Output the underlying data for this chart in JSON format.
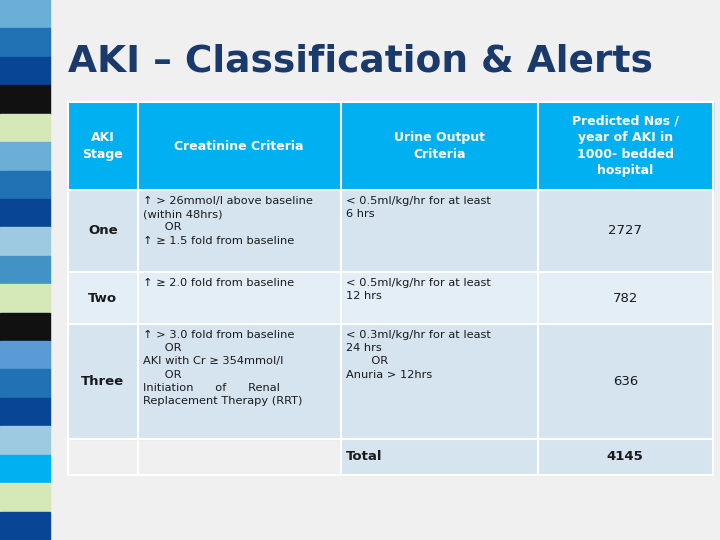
{
  "title": "AKI – Classification & Alerts",
  "title_color": "#1a3a6b",
  "header_bg": "#00b0f0",
  "row_bg_light": "#d6e4f0",
  "row_bg_lighter": "#e3eef7",
  "col_headers_0": "AKI\nStage",
  "col_headers_1": "Creatinine Criteria",
  "col_headers_2": "Urine Output\nCriteria",
  "col_headers_3": "Predicted Nøs /\nyear of AKI in\n1000- bedded\nhospital",
  "row1_stage": "One",
  "row1_creatinine_l1": "↑ > 26mmol/l above baseline",
  "row1_creatinine_l2": "(within 48hrs)",
  "row1_creatinine_l3": "OR",
  "row1_creatinine_l4": "↑ ≥ 1.5 fold from baseline",
  "row1_urine_l1": "< 0.5ml/kg/hr for at least",
  "row1_urine_l2": "6 hrs",
  "row1_predicted": "2727",
  "row2_stage": "Two",
  "row2_creatinine_l1": "↑ ≥ 2.0 fold from baseline",
  "row2_urine_l1": "< 0.5ml/kg/hr for at least",
  "row2_urine_l2": "12 hrs",
  "row2_predicted": "782",
  "row3_stage": "Three",
  "row3_creatinine_l1": "↑ > 3.0 fold from baseline",
  "row3_creatinine_l2": "OR",
  "row3_creatinine_l3": "AKI with Cr ≥ 354mmol/l",
  "row3_creatinine_l4": "OR",
  "row3_creatinine_l5": "Initiation      of      Renal",
  "row3_creatinine_l6": "Replacement Therapy (RRT)",
  "row3_urine_l1": "< 0.3ml/kg/hr for at least",
  "row3_urine_l2": "24 hrs",
  "row3_urine_l3": "OR",
  "row3_urine_l4": "Anuria > 12hrs",
  "row3_predicted": "636",
  "total_label": "Total",
  "total_value": "4145",
  "sidebar_colors": [
    "#6baed6",
    "#2171b5",
    "#084594",
    "#111111",
    "#d4e8b8",
    "#6baed6",
    "#2171b5",
    "#084594",
    "#9ecae1",
    "#4292c6",
    "#d4e8b8",
    "#111111",
    "#5b9bd5",
    "#2171b5",
    "#084594",
    "#9ecae1",
    "#00b0f0",
    "#d4e8b8",
    "#084594"
  ]
}
